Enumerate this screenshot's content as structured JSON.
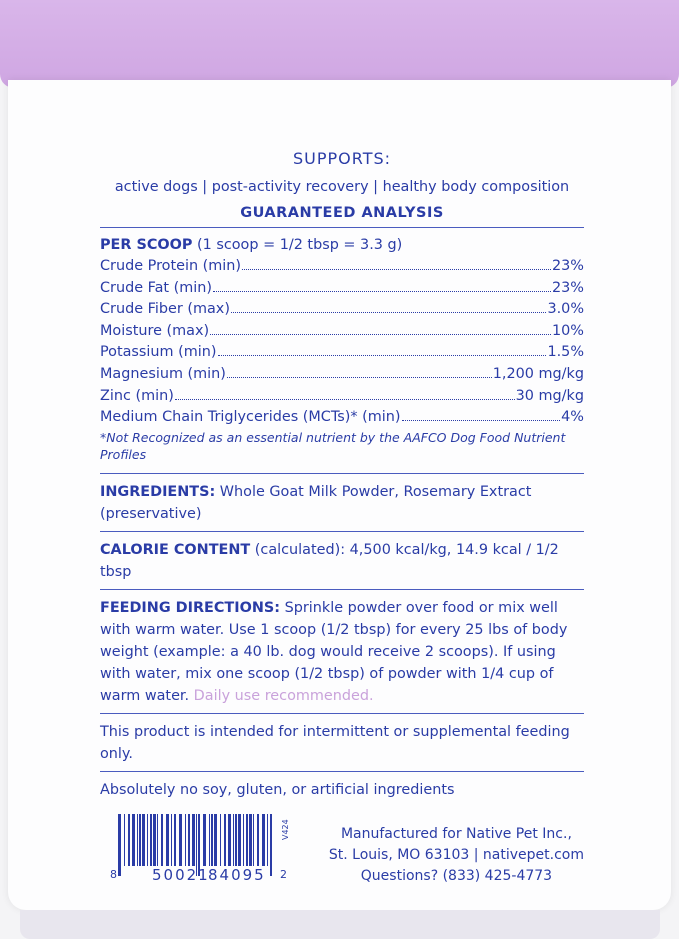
{
  "colors": {
    "text": "#2a3ca6",
    "lid": "#d6b0e8",
    "accent_pink": "#c9a2db"
  },
  "supports": {
    "title": "SUPPORTS:",
    "text": "active dogs | post-activity recovery | healthy body composition"
  },
  "analysis": {
    "title": "GUARANTEED ANALYSIS",
    "per_scoop_label": "PER SCOOP",
    "per_scoop_detail": " (1 scoop = 1/2 tbsp = 3.3 g)",
    "rows": [
      {
        "name": "Crude Protein (min)",
        "value": "23%"
      },
      {
        "name": "Crude Fat (min)",
        "value": "23%"
      },
      {
        "name": "Crude Fiber (max)",
        "value": "3.0%"
      },
      {
        "name": "Moisture (max)",
        "value": "10%"
      },
      {
        "name": "Potassium (min)",
        "value": "1.5%"
      },
      {
        "name": "Magnesium (min)",
        "value": "1,200 mg/kg"
      },
      {
        "name": "Zinc (min)",
        "value": "30 mg/kg"
      },
      {
        "name": "Medium Chain Triglycerides (MCTs)* (min)",
        "value": "4%"
      }
    ],
    "footnote": "*Not Recognized as an essential nutrient by the AAFCO Dog Food Nutrient Profiles"
  },
  "ingredients": {
    "label": "INGREDIENTS:",
    "text": " Whole Goat Milk Powder, Rosemary Extract (preservative)"
  },
  "calories": {
    "label": "CALORIE CONTENT",
    "text": " (calculated): 4,500 kcal/kg, 14.9 kcal / 1/2 tbsp"
  },
  "feeding": {
    "label": "FEEDING DIRECTIONS:",
    "text": " Sprinkle powder over food or mix well with warm water. Use 1 scoop (1/2 tbsp) for every 25 lbs of body weight (example: a 40 lb. dog would receive 2 scoops). If using with water, mix one scoop (1/2 tbsp) of powder with 1/4 cup of warm water. ",
    "highlight": "Daily use recommended."
  },
  "intermittent": "This product is intended for intermittent or supplemental feeding only.",
  "claims": "Absolutely no soy, gluten, or artificial ingredients",
  "barcode": {
    "lead": "8",
    "left": "50021",
    "right": "84095",
    "check": "2",
    "version": "V424"
  },
  "manufacturer": {
    "line1": "Manufactured for Native Pet Inc.,",
    "line2": "St. Louis, MO 63103  | nativepet.com",
    "line3": "Questions? (833) 425-4773"
  }
}
